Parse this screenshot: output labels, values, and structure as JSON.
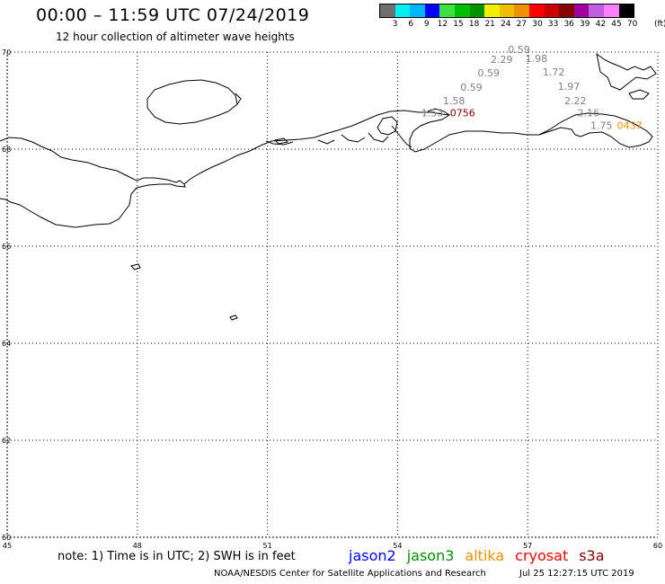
{
  "header": {
    "title": "00:00 – 11:59 UTC 07/24/2019",
    "subtitle": "12 hour collection of altimeter wave heights"
  },
  "scale": {
    "colors": [
      "#6e6e6e",
      "#00f0f0",
      "#00b4ff",
      "#0000ff",
      "#40e040",
      "#00c000",
      "#009000",
      "#f0f000",
      "#f0c000",
      "#f09000",
      "#ff0000",
      "#c80000",
      "#880000",
      "#a000a0",
      "#c060e0",
      "#ff80ff",
      "#000000"
    ],
    "labels": [
      "3",
      "6",
      "9",
      "12",
      "15",
      "18",
      "21",
      "24",
      "27",
      "30",
      "33",
      "36",
      "39",
      "42",
      "45",
      "70"
    ],
    "unit": "(ft)"
  },
  "map": {
    "lon_range": [
      45,
      60
    ],
    "lat_range": [
      60,
      70
    ],
    "lon_ticks": [
      45,
      48,
      51,
      54,
      57,
      60
    ],
    "lat_ticks": [
      60,
      62,
      64,
      66,
      68,
      70
    ],
    "lon_labels": [
      "45",
      "48",
      "51",
      "54",
      "57",
      "60"
    ],
    "lat_labels": [
      "60",
      "62",
      "64",
      "66",
      "68",
      "70"
    ],
    "grid": "dotted",
    "observations": [
      {
        "lon": 56.8,
        "lat": 69.98,
        "text": "0.59",
        "color": "#808080"
      },
      {
        "lon": 56.4,
        "lat": 69.78,
        "text": "2.29",
        "color": "#808080"
      },
      {
        "lon": 57.2,
        "lat": 69.8,
        "text": "1.98",
        "color": "#808080"
      },
      {
        "lon": 56.1,
        "lat": 69.5,
        "text": "0.59",
        "color": "#808080"
      },
      {
        "lon": 57.6,
        "lat": 69.52,
        "text": "1.72",
        "color": "#808080"
      },
      {
        "lon": 55.7,
        "lat": 69.2,
        "text": "0.59",
        "color": "#808080"
      },
      {
        "lon": 57.95,
        "lat": 69.22,
        "text": "1.97",
        "color": "#808080"
      },
      {
        "lon": 55.3,
        "lat": 68.93,
        "text": "1.58",
        "color": "#808080"
      },
      {
        "lon": 58.1,
        "lat": 68.93,
        "text": "2.22",
        "color": "#808080"
      },
      {
        "lon": 58.4,
        "lat": 68.68,
        "text": "2.16",
        "color": "#808080"
      },
      {
        "lon": 54.8,
        "lat": 68.68,
        "text": "1.53",
        "color": "#808080"
      },
      {
        "lon": 58.7,
        "lat": 68.42,
        "text": "1.75",
        "color": "#808080"
      },
      {
        "lon": 55.5,
        "lat": 68.68,
        "text": "0756",
        "color": "#880000"
      },
      {
        "lon": 59.35,
        "lat": 68.42,
        "text": "0437",
        "color": "#f09000"
      }
    ]
  },
  "footer": {
    "note": "note: 1) Time is in UTC; 2) SWH is in feet",
    "satellites": [
      {
        "name": "jason2",
        "color": "#0000ff"
      },
      {
        "name": "jason3",
        "color": "#009000"
      },
      {
        "name": "altika",
        "color": "#f09000"
      },
      {
        "name": "cryosat",
        "color": "#ff0000"
      },
      {
        "name": "s3a",
        "color": "#880000"
      }
    ],
    "credit": "NOAA/NESDIS Center for Satellite Applications and Research",
    "timestamp": "Jul 25 12:27:15 UTC 2019"
  }
}
